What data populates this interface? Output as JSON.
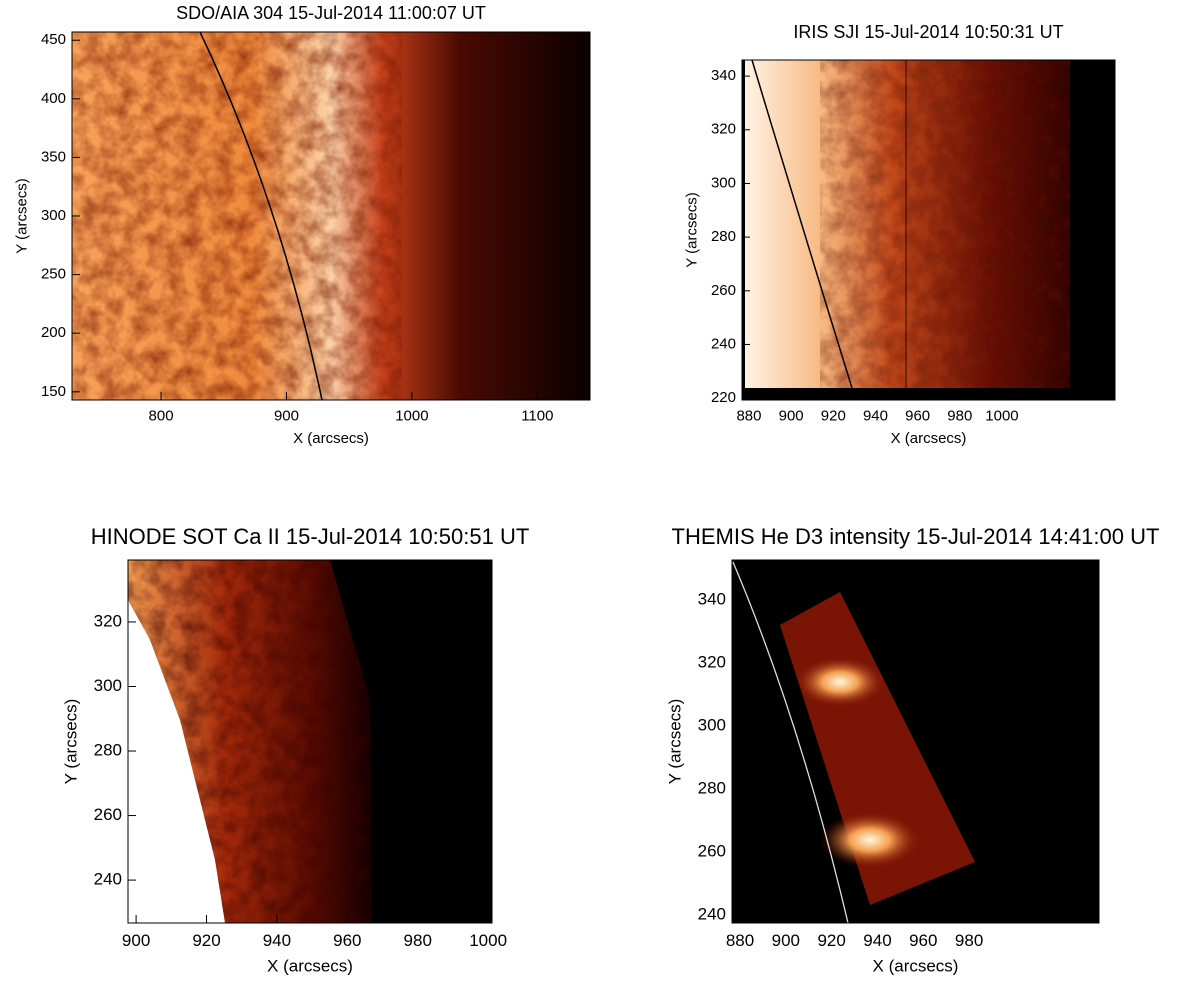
{
  "panels": [
    {
      "title": "SDO/AIA 304 15-Jul-2014 11:00:07 UT",
      "x_label": "X (arcsecs)",
      "y_label": "Y (arcsecs)",
      "xlim": [
        729,
        1142
      ],
      "ylim": [
        143,
        457
      ],
      "xticks": [
        800,
        900,
        1000,
        1100
      ],
      "yticks": [
        150,
        200,
        250,
        300,
        350,
        400,
        450
      ]
    },
    {
      "title": "IRIS SJI 15-Jul-2014 10:50:31 UT",
      "x_label": "X (arcsecs)",
      "y_label": "Y (arcsecs)",
      "xlim": [
        876.7,
        1053.6
      ],
      "ylim": [
        219.3,
        346
      ],
      "xticks": [
        880,
        900,
        920,
        940,
        960,
        980,
        1000
      ],
      "yticks": [
        220,
        240,
        260,
        280,
        300,
        320,
        340
      ]
    },
    {
      "title": "HINODE SOT Ca II 15-Jul-2014 10:50:51 UT",
      "x_label": "X (arcsecs)",
      "y_label": "Y (arcsecs)",
      "xlim": [
        897.7,
        1001.1
      ],
      "ylim": [
        226.7,
        339.2
      ],
      "xticks": [
        900,
        920,
        940,
        960,
        980,
        1000
      ],
      "yticks": [
        240,
        260,
        280,
        300,
        320
      ]
    },
    {
      "title": "THEMIS He D3 intensity 15-Jul-2014 14:41:00 UT",
      "x_label": "X (arcsecs)",
      "y_label": "Y (arcsecs)",
      "xlim": [
        876.5,
        1036.7
      ],
      "ylim": [
        237.5,
        352.7
      ],
      "xticks": [
        880,
        900,
        920,
        940,
        960,
        980
      ],
      "yticks": [
        240,
        260,
        280,
        300,
        320,
        340
      ]
    }
  ]
}
